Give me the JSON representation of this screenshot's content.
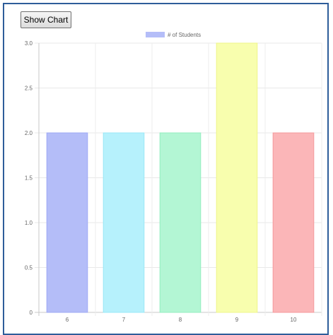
{
  "toolbar": {
    "show_chart_label": "Show Chart"
  },
  "chart_data": {
    "type": "bar",
    "categories": [
      "6",
      "7",
      "8",
      "9",
      "10"
    ],
    "series": [
      {
        "name": "# of Students",
        "values": [
          2,
          2,
          2,
          3,
          2
        ],
        "colors": [
          "#b4bdf8",
          "#b6f1fc",
          "#b3f6d4",
          "#f8feae",
          "#fbb6b8"
        ],
        "borders": [
          "#9ea9f5",
          "#99e8f7",
          "#93eebf",
          "#eef58a",
          "#f59a9c"
        ]
      }
    ],
    "ylim": [
      0,
      3
    ],
    "yticks": [
      "0",
      "0.5",
      "1.0",
      "1.5",
      "2.0",
      "2.5",
      "3.0"
    ],
    "grid": true,
    "legend_position": "top",
    "legend_swatch_color": "#b4bdf8"
  }
}
